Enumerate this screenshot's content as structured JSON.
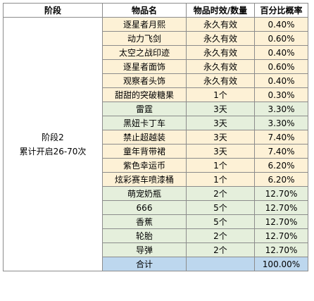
{
  "headers": {
    "stage": "阶段",
    "item": "物品名",
    "duration": "物品时效/数量",
    "percent": "百分比概率"
  },
  "stage": {
    "line1": "阶段2",
    "line2": "累计开启26-70次"
  },
  "rows": [
    {
      "item": "逐星者月熙",
      "duration": "永久有效",
      "percent": "0.40%",
      "color": "#fdf1d6"
    },
    {
      "item": "动力飞剑",
      "duration": "永久有效",
      "percent": "0.60%",
      "color": "#fdf1d6"
    },
    {
      "item": "太空之战印迹",
      "duration": "永久有效",
      "percent": "0.40%",
      "color": "#fdf1d6"
    },
    {
      "item": "逐星者面饰",
      "duration": "永久有效",
      "percent": "0.60%",
      "color": "#fdf1d6"
    },
    {
      "item": "观察者头饰",
      "duration": "永久有效",
      "percent": "0.40%",
      "color": "#fdf1d6"
    },
    {
      "item": "甜甜的突破糖果",
      "duration": "1个",
      "percent": "0.30%",
      "color": "#fdf1d6"
    },
    {
      "item": "雷霆",
      "duration": "3天",
      "percent": "3.30%",
      "color": "#e5efdc"
    },
    {
      "item": "黑妞卡丁车",
      "duration": "3天",
      "percent": "3.30%",
      "color": "#e5efdc"
    },
    {
      "item": "禁止超越装",
      "duration": "3天",
      "percent": "7.40%",
      "color": "#fdf1d6"
    },
    {
      "item": "童年背带裙",
      "duration": "3天",
      "percent": "7.40%",
      "color": "#fdf1d6"
    },
    {
      "item": "紫色幸运币",
      "duration": "1个",
      "percent": "6.20%",
      "color": "#fdf1d6"
    },
    {
      "item": "炫彩赛车喷漆桶",
      "duration": "1个",
      "percent": "6.20%",
      "color": "#fdf1d6"
    },
    {
      "item": "萌宠奶瓶",
      "duration": "2个",
      "percent": "12.70%",
      "color": "#e5efdc"
    },
    {
      "item": "666",
      "duration": "5个",
      "percent": "12.70%",
      "color": "#e5efdc"
    },
    {
      "item": "香蕉",
      "duration": "5个",
      "percent": "12.70%",
      "color": "#e5efdc"
    },
    {
      "item": "轮胎",
      "duration": "2个",
      "percent": "12.70%",
      "color": "#e5efdc"
    },
    {
      "item": "导弹",
      "duration": "2个",
      "percent": "12.70%",
      "color": "#e5efdc"
    }
  ],
  "total": {
    "label": "合计",
    "duration": "",
    "percent": "100.00%",
    "color": "#bdd7ee"
  }
}
